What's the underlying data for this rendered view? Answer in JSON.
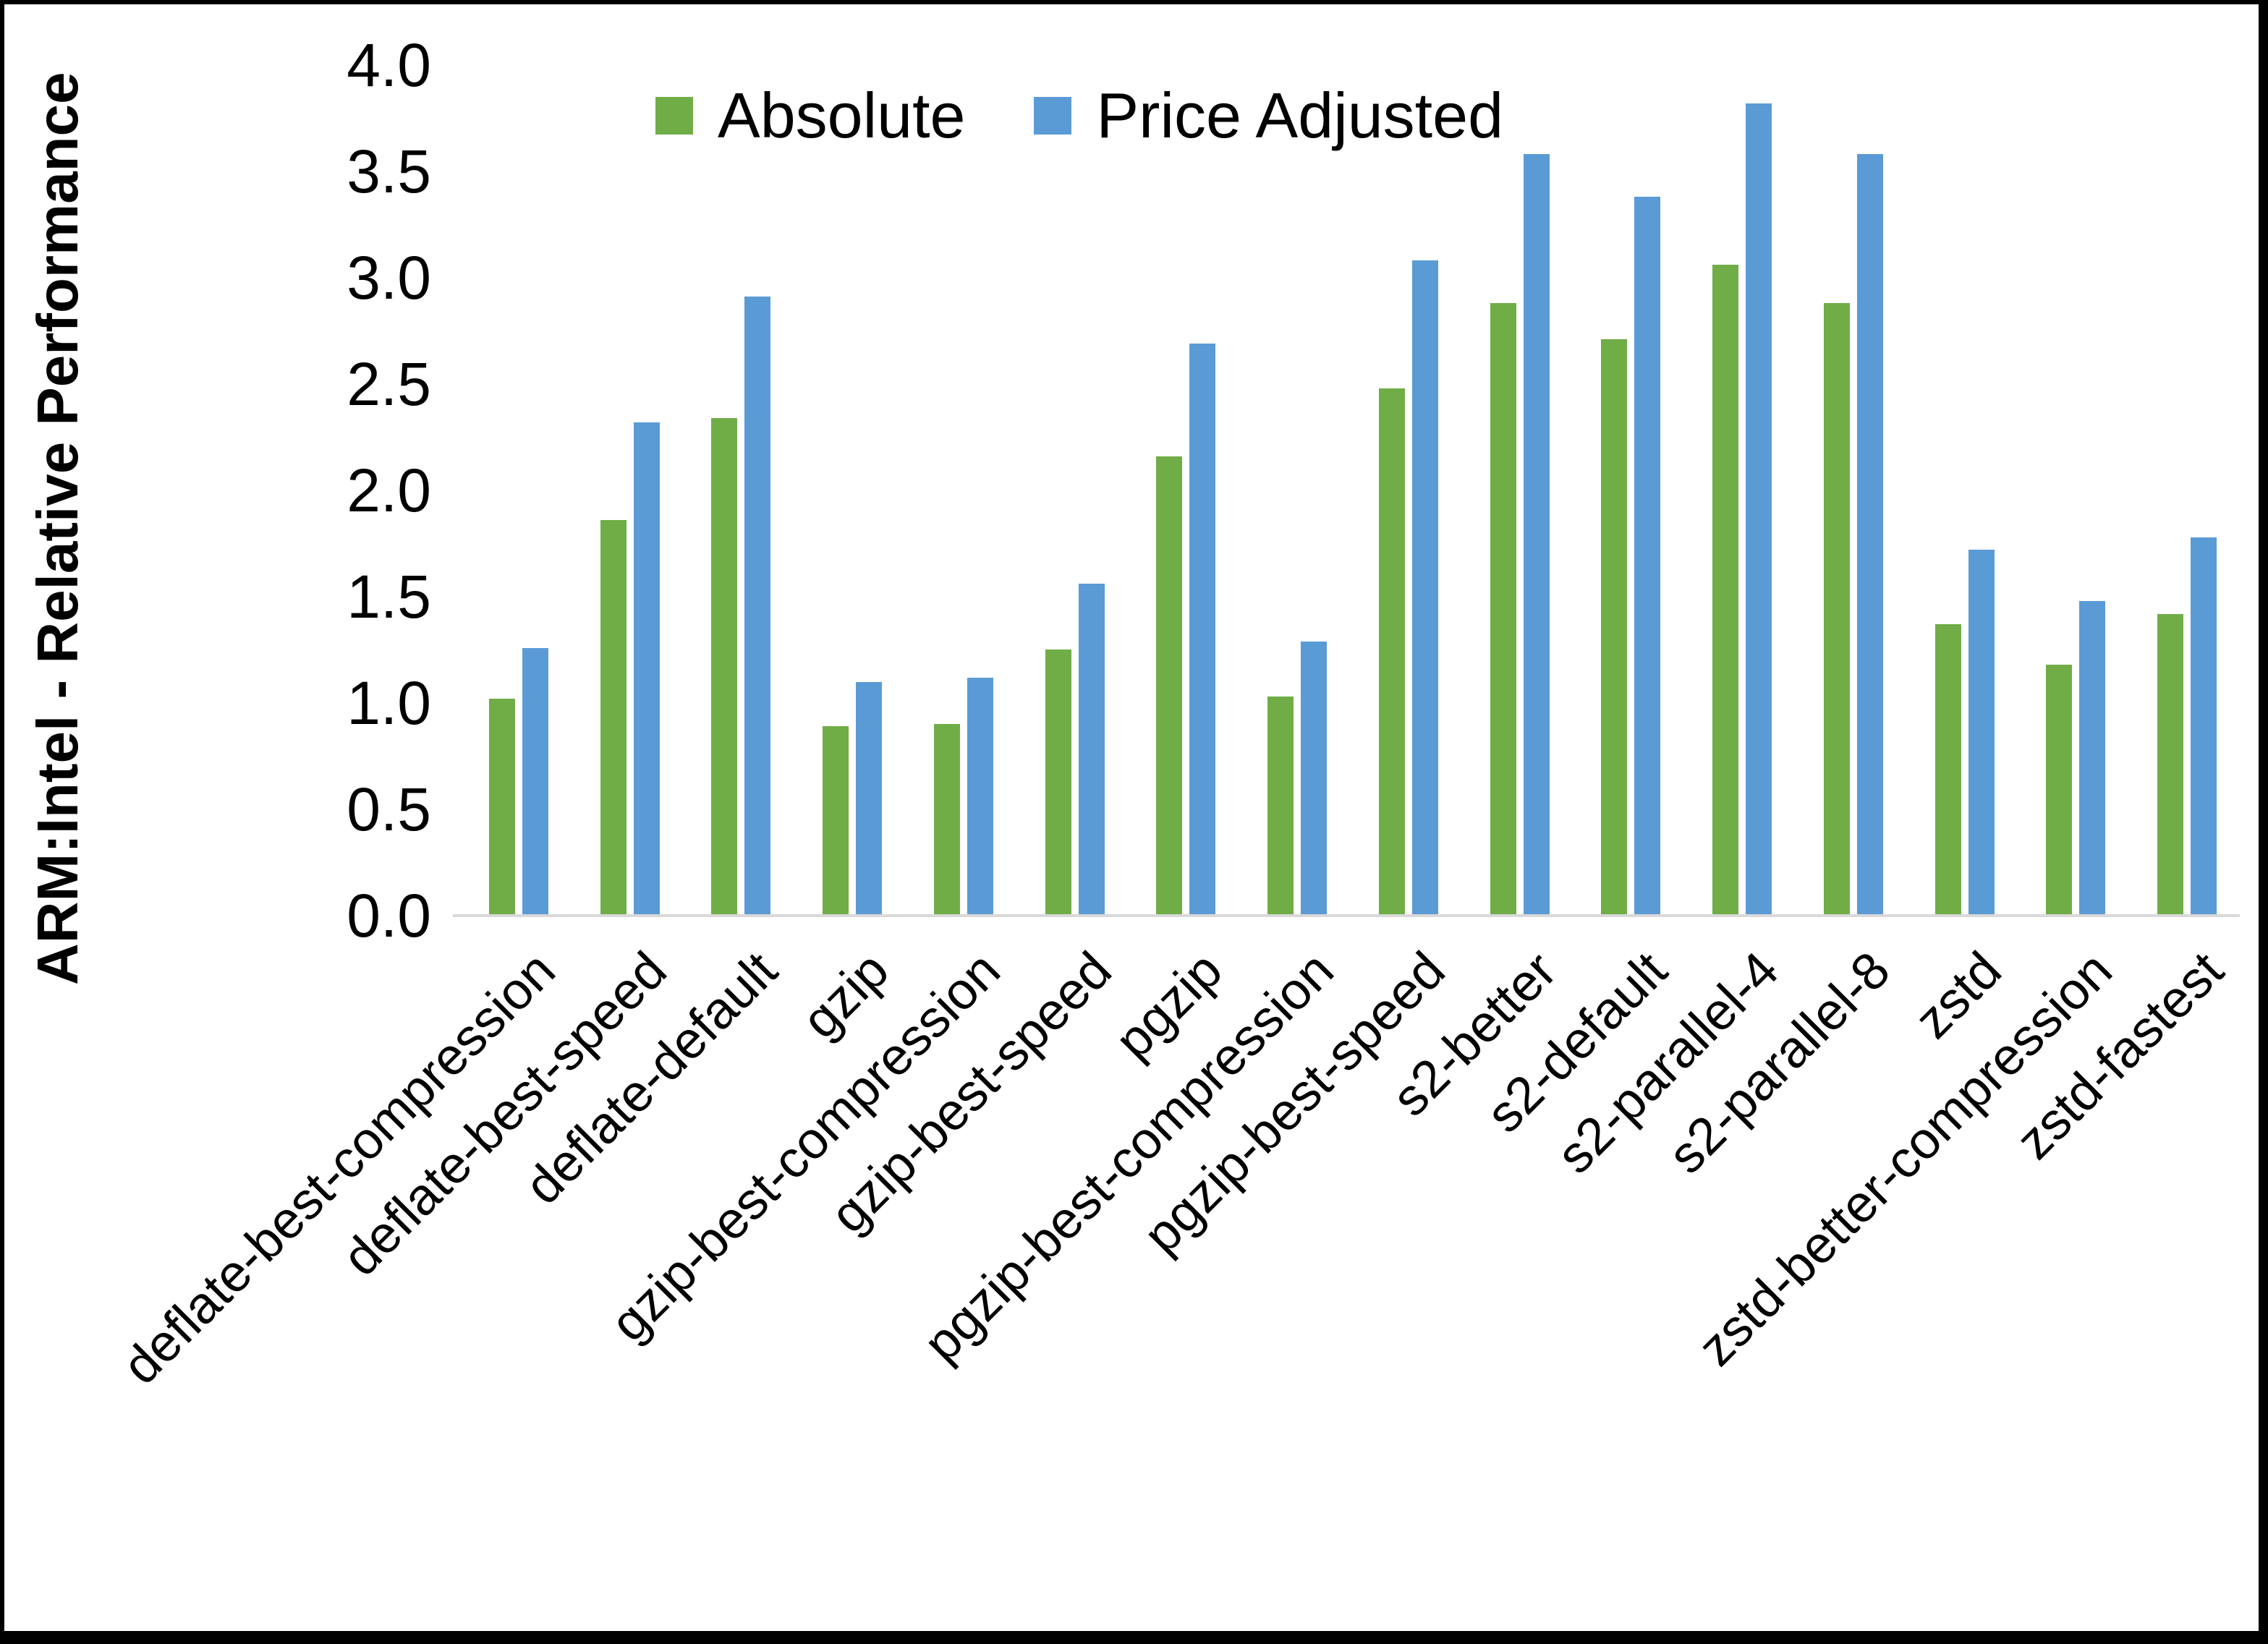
{
  "chart_data": {
    "type": "bar",
    "title": "",
    "xlabel": "",
    "ylabel": "ARM:Intel - Relative Performance",
    "ylim": [
      0.0,
      4.0
    ],
    "ytick_step": 0.5,
    "yticks": [
      "0.0",
      "0.5",
      "1.0",
      "1.5",
      "2.0",
      "2.5",
      "3.0",
      "3.5",
      "4.0"
    ],
    "grid": false,
    "legend_position": "top-center",
    "categories": [
      "deflate-best-compression",
      "deflate-best-speed",
      "deflate-default",
      "gzip",
      "gzip-best-compression",
      "gzip-best-speed",
      "pgzip",
      "pgzip-best-compression",
      "pgzip-best-speed",
      "s2-better",
      "s2-default",
      "s2-parallel-4",
      "s2-parallel-8",
      "zstd",
      "zstd-better-compression",
      "zstd-fastest"
    ],
    "series": [
      {
        "name": "Absolute",
        "color": "#70AD47",
        "values": [
          1.02,
          1.86,
          2.34,
          0.89,
          0.9,
          1.25,
          2.16,
          1.03,
          2.48,
          2.88,
          2.71,
          3.06,
          2.88,
          1.37,
          1.18,
          1.42
        ]
      },
      {
        "name": "Price Adjusted",
        "color": "#5B9BD5",
        "values": [
          1.26,
          2.32,
          2.91,
          1.1,
          1.12,
          1.56,
          2.69,
          1.29,
          3.08,
          3.58,
          3.38,
          3.82,
          3.58,
          1.72,
          1.48,
          1.78
        ]
      }
    ]
  },
  "colors": {
    "background": "#FFFFFF",
    "frame": "#000000",
    "axis_line": "#D9D9D9",
    "text": "#000000",
    "series_absolute": "#70AD47",
    "series_price_adjusted": "#5B9BD5"
  }
}
